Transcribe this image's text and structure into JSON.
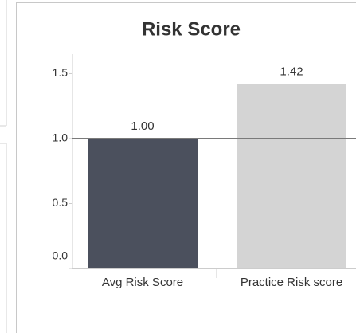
{
  "chart_data": {
    "type": "bar",
    "title": "Risk Score",
    "categories": [
      "Avg Risk Score",
      "Practice Risk score"
    ],
    "values": [
      1.0,
      1.42
    ],
    "value_labels": [
      "1.00",
      "1.42"
    ],
    "colors": [
      "#4b505d",
      "#d4d4d4"
    ],
    "reference_line": 1.0,
    "ylim": [
      0,
      1.65
    ],
    "yticks": [
      {
        "value": 0,
        "label": "0.0"
      },
      0.5,
      {
        "value": 1,
        "label": "1.0"
      },
      {
        "value": 1.5,
        "label": "1.5"
      }
    ]
  }
}
